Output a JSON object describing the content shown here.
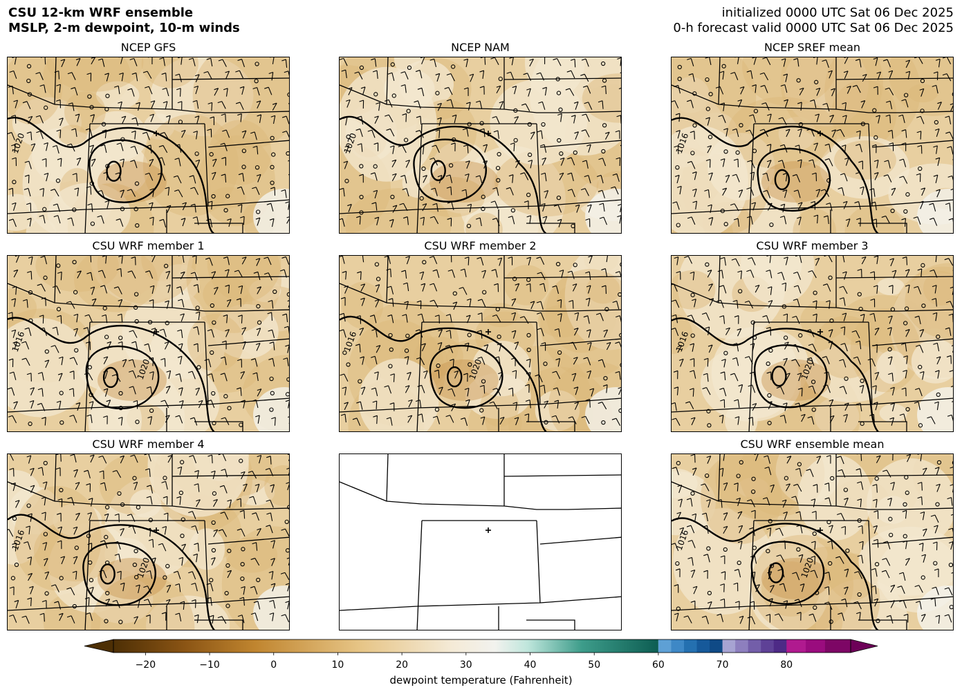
{
  "header": {
    "title_line1": "CSU 12-km WRF ensemble",
    "title_line2": "MSLP, 2-m dewpoint, 10-m winds",
    "init_line": "initialized 0000 UTC Sat 06 Dec 2025",
    "valid_line": "0-h forecast valid 0000 UTC Sat 06 Dec 2025"
  },
  "panels": [
    {
      "title": "NCEP GFS",
      "contours": [
        "1020"
      ]
    },
    {
      "title": "NCEP NAM",
      "contours": [
        "1020"
      ]
    },
    {
      "title": "NCEP SREF mean",
      "contours": [
        "1016"
      ]
    },
    {
      "title": "CSU WRF member 1",
      "contours": [
        "1016",
        "1020"
      ]
    },
    {
      "title": "CSU WRF member 2",
      "contours": [
        "1016",
        "1020"
      ]
    },
    {
      "title": "CSU WRF member 3",
      "contours": [
        "1016",
        "1020"
      ]
    },
    {
      "title": "CSU WRF member 4",
      "contours": [
        "1016",
        "1020"
      ]
    },
    {
      "title": "",
      "contours": []
    },
    {
      "title": "CSU WRF ensemble mean",
      "contours": [
        "1016",
        "1020"
      ]
    }
  ],
  "colorbar": {
    "label": "dewpoint temperature (Fahrenheit)",
    "ticks": [
      "−20",
      "−10",
      "0",
      "10",
      "20",
      "30",
      "40",
      "50",
      "60",
      "70",
      "80"
    ],
    "tick_values": [
      -20,
      -10,
      0,
      10,
      20,
      30,
      40,
      50,
      60,
      70,
      80
    ],
    "range": [
      -25,
      90
    ]
  },
  "colors": {
    "dry": "#e8cfa0",
    "moist": "#f4ead6",
    "contour": "#000000"
  }
}
